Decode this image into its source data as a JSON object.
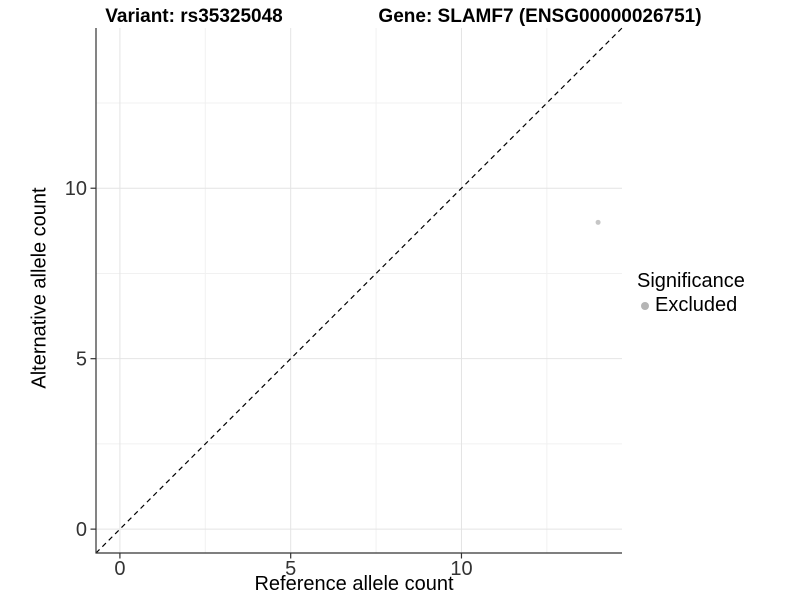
{
  "header": {
    "variant_title": "Variant: rs35325048",
    "gene_title": "Gene: SLAMF7 (ENSG00000026751)"
  },
  "axes": {
    "x_label": "Reference allele count",
    "y_label": "Alternative allele count"
  },
  "legend": {
    "title": "Significance",
    "items": [
      {
        "label": "Excluded",
        "color": "#b5b5b5"
      }
    ]
  },
  "chart_data": {
    "type": "scatter",
    "title": "Variant: rs35325048 — Gene: SLAMF7 (ENSG00000026751)",
    "xlabel": "Reference allele count",
    "ylabel": "Alternative allele count",
    "xlim": [
      -0.7,
      14.7
    ],
    "ylim": [
      -0.7,
      14.7
    ],
    "x_ticks": [
      0,
      5,
      10
    ],
    "y_ticks": [
      0,
      5,
      10
    ],
    "grid": true,
    "legend_position": "right",
    "series": [
      {
        "name": "Excluded",
        "color": "#c6c6c6",
        "point_radius": 2.5,
        "points": [
          [
            14,
            9
          ]
        ]
      }
    ],
    "reference_line": {
      "type": "identity",
      "style": "dashed",
      "color": "#000000",
      "from": [
        -0.7,
        -0.7
      ],
      "to": [
        14.7,
        14.7
      ]
    },
    "colors": {
      "grid_major": "#e4e4e4",
      "grid_minor": "#f1f1f1",
      "axis_line": "#333333",
      "tick_label": "#333333"
    }
  }
}
